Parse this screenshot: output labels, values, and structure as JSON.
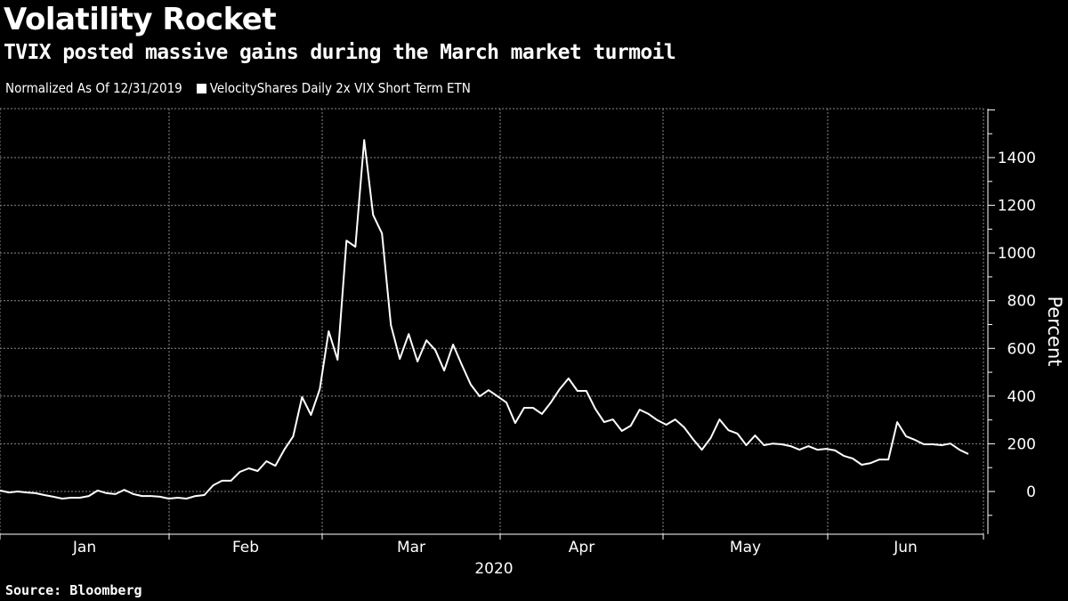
{
  "title": "Volatility Rocket",
  "subtitle": "TVIX posted massive gains during the March market turmoil",
  "legend": {
    "note": "Normalized As Of 12/31/2019",
    "series_label": "VelocityShares Daily 2x VIX Short Term ETN"
  },
  "source": "Source: Bloomberg",
  "colors": {
    "background": "#000000",
    "line": "#ffffff",
    "grid": "#8a8a8a"
  },
  "chart_data": {
    "type": "line",
    "title": "Volatility Rocket",
    "xlabel": "2020",
    "ylabel": "Percent",
    "ylim": [
      -180,
      1600
    ],
    "yticks": [
      "0",
      "200",
      "400",
      "600",
      "800",
      "1000",
      "1200",
      "1400"
    ],
    "ytick_values": [
      0,
      200,
      400,
      600,
      800,
      1000,
      1200,
      1400
    ],
    "x_tick_labels": [
      "Jan",
      "Feb",
      "Mar",
      "Apr",
      "May",
      "Jun"
    ],
    "grid": true,
    "legend_position": "top-left",
    "series": [
      {
        "name": "VelocityShares Daily 2x VIX Short Term ETN",
        "values": [
          4,
          -4,
          0,
          -4,
          -7,
          -15,
          -22,
          -30,
          -26,
          -26,
          -19,
          4,
          -7,
          -11,
          7,
          -11,
          -19,
          -19,
          -22,
          -30,
          -26,
          -30,
          -19,
          -15,
          26,
          45,
          45,
          82,
          97,
          86,
          127,
          108,
          175,
          231,
          396,
          321,
          429,
          672,
          552,
          1052,
          1026,
          1474,
          1160,
          1082,
          698,
          556,
          660,
          545,
          634,
          593,
          507,
          616,
          530,
          448,
          399,
          425,
          399,
          373,
          287,
          351,
          351,
          325,
          373,
          429,
          474,
          422,
          422,
          347,
          291,
          302,
          254,
          276,
          343,
          325,
          299,
          280,
          302,
          269,
          220,
          175,
          224,
          302,
          257,
          243,
          194,
          235,
          194,
          201,
          198,
          190,
          175,
          190,
          175,
          179,
          172,
          149,
          138,
          112,
          119,
          134,
          134,
          291,
          231,
          216,
          198,
          198,
          194,
          201,
          175,
          157
        ]
      }
    ]
  }
}
